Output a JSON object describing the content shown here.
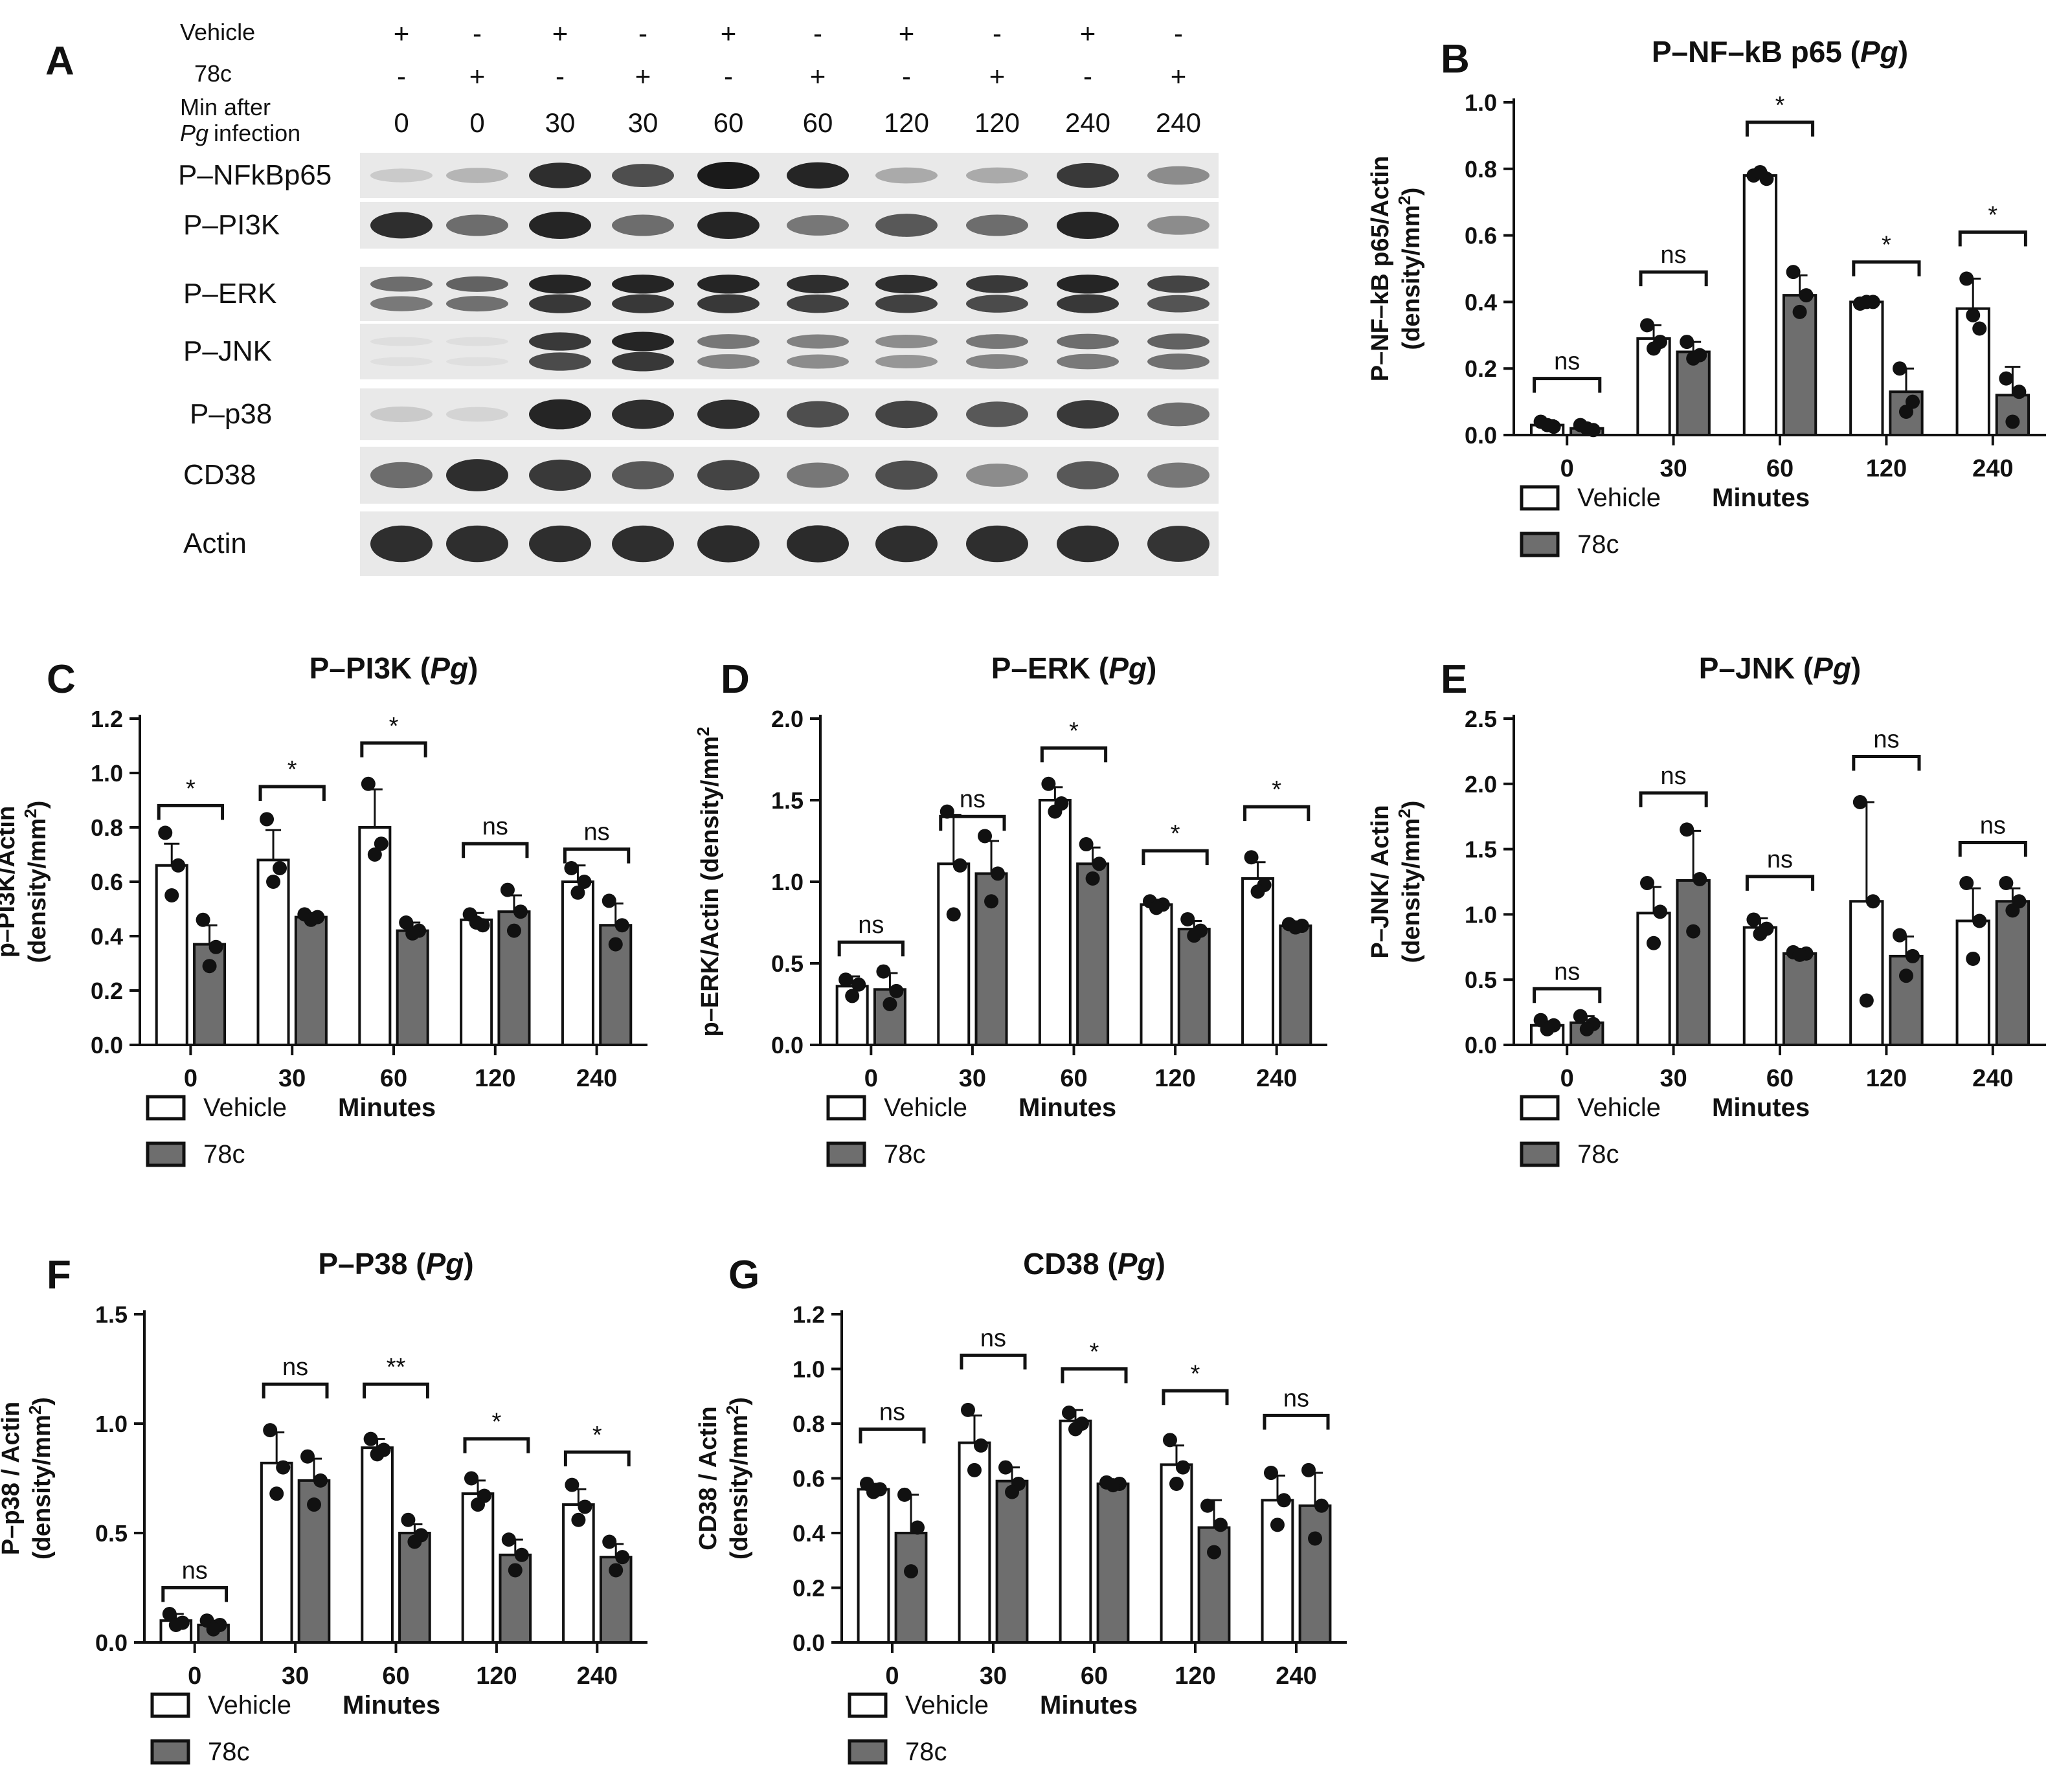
{
  "colors": {
    "vehicle": "#ffffff",
    "c78": "#6e6e6e",
    "axis": "#111111",
    "blot_bg": "#e9e9e9",
    "band": "#1a1a1a"
  },
  "blot": {
    "panel_letter": "A",
    "row_labels": [
      "Vehicle",
      "78c",
      "Min after",
      "infection"
    ],
    "pg": "Pg",
    "vehicle_signs": [
      "+",
      "-",
      "+",
      "-",
      "+",
      "-",
      "+",
      "-",
      "+",
      "-"
    ],
    "c78_signs": [
      "-",
      "+",
      "-",
      "+",
      "-",
      "+",
      "-",
      "+",
      "-",
      "+"
    ],
    "minutes": [
      "0",
      "0",
      "30",
      "30",
      "60",
      "60",
      "120",
      "120",
      "240",
      "240"
    ],
    "lanes": [
      {
        "name": "P–NFkBp65",
        "intensity": [
          0.15,
          0.25,
          0.9,
          0.75,
          1.0,
          0.95,
          0.3,
          0.3,
          0.85,
          0.45
        ],
        "double": false
      },
      {
        "name": "P–PI3K",
        "intensity": [
          0.9,
          0.6,
          0.95,
          0.6,
          0.95,
          0.55,
          0.7,
          0.6,
          0.95,
          0.45
        ],
        "double": false
      },
      {
        "name": "P–ERK",
        "intensity": [
          0.6,
          0.65,
          0.95,
          0.95,
          0.95,
          0.9,
          0.9,
          0.85,
          0.95,
          0.8
        ],
        "double": true
      },
      {
        "name": "P–JNK",
        "intensity": [
          0.05,
          0.05,
          0.85,
          0.95,
          0.55,
          0.5,
          0.45,
          0.55,
          0.6,
          0.65
        ],
        "double": true
      },
      {
        "name": "P–p38",
        "intensity": [
          0.15,
          0.1,
          0.95,
          0.9,
          0.9,
          0.75,
          0.8,
          0.7,
          0.85,
          0.6
        ],
        "double": false
      },
      {
        "name": "CD38",
        "intensity": [
          0.6,
          0.9,
          0.85,
          0.7,
          0.8,
          0.55,
          0.75,
          0.45,
          0.7,
          0.55
        ],
        "double": false
      },
      {
        "name": "Actin",
        "intensity": [
          0.9,
          0.9,
          0.9,
          0.9,
          0.92,
          0.92,
          0.9,
          0.9,
          0.9,
          0.88
        ],
        "double": false
      }
    ]
  },
  "chart_data": [
    {
      "type": "bar",
      "panel_letter": "B",
      "title": "P–NF–kB p65 (",
      "title_italic": "Pg",
      "title_end": ")",
      "ylabel_line1": "P–NF–kB p65/Actin",
      "ylabel_line2": "(density/mm",
      "ylabel_sup": "2",
      "ylabel_end": ")",
      "xlabel": "Minutes",
      "ylim": [
        0,
        1.0
      ],
      "yticks": [
        "0.0",
        "0.2",
        "0.4",
        "0.6",
        "0.8",
        "1.0"
      ],
      "categories": [
        "0",
        "30",
        "60",
        "120",
        "240"
      ],
      "legend": [
        "Vehicle",
        "78c"
      ],
      "series": [
        {
          "name": "Vehicle",
          "values": [
            0.03,
            0.29,
            0.78,
            0.4,
            0.38
          ],
          "sd": [
            0.015,
            0.04,
            0.01,
            0.005,
            0.09
          ],
          "points": [
            [
              0.04,
              0.025,
              0.03
            ],
            [
              0.33,
              0.28,
              0.26
            ],
            [
              0.78,
              0.77,
              0.79
            ],
            [
              0.395,
              0.4,
              0.4
            ],
            [
              0.47,
              0.32,
              0.36
            ]
          ]
        },
        {
          "name": "78c",
          "values": [
            0.02,
            0.25,
            0.42,
            0.13,
            0.12
          ],
          "sd": [
            0.01,
            0.03,
            0.06,
            0.07,
            0.085
          ],
          "points": [
            [
              0.03,
              0.015,
              0.02
            ],
            [
              0.28,
              0.24,
              0.23
            ],
            [
              0.49,
              0.42,
              0.37
            ],
            [
              0.2,
              0.1,
              0.07
            ],
            [
              0.17,
              0.13,
              0.04
            ]
          ]
        }
      ],
      "sig": [
        "ns",
        "ns",
        "*",
        "*",
        "*"
      ],
      "sig_y": [
        0.17,
        0.49,
        0.94,
        0.52,
        0.61
      ]
    },
    {
      "type": "bar",
      "panel_letter": "C",
      "title": "P–PI3K (",
      "title_italic": "Pg",
      "title_end": ")",
      "ylabel_line1": "p–PI3K/Actin",
      "ylabel_line2": "(density/mm",
      "ylabel_sup": "2",
      "ylabel_end": ")",
      "xlabel": "Minutes",
      "ylim": [
        0,
        1.2
      ],
      "yticks": [
        "0.0",
        "0.2",
        "0.4",
        "0.6",
        "0.8",
        "1.0",
        "1.2"
      ],
      "categories": [
        "0",
        "30",
        "60",
        "120",
        "240"
      ],
      "legend": [
        "Vehicle",
        "78c"
      ],
      "series": [
        {
          "name": "Vehicle",
          "values": [
            0.66,
            0.68,
            0.8,
            0.46,
            0.6
          ],
          "sd": [
            0.08,
            0.11,
            0.14,
            0.025,
            0.06
          ],
          "points": [
            [
              0.78,
              0.66,
              0.55
            ],
            [
              0.83,
              0.65,
              0.6
            ],
            [
              0.96,
              0.74,
              0.7
            ],
            [
              0.48,
              0.44,
              0.45
            ],
            [
              0.65,
              0.6,
              0.56
            ]
          ]
        },
        {
          "name": "78c",
          "values": [
            0.37,
            0.47,
            0.42,
            0.49,
            0.44
          ],
          "sd": [
            0.07,
            0.015,
            0.03,
            0.06,
            0.08
          ],
          "points": [
            [
              0.46,
              0.36,
              0.29
            ],
            [
              0.48,
              0.47,
              0.46
            ],
            [
              0.45,
              0.42,
              0.41
            ],
            [
              0.57,
              0.49,
              0.42
            ],
            [
              0.53,
              0.44,
              0.37
            ]
          ]
        }
      ],
      "sig": [
        "*",
        "*",
        "*",
        "ns",
        "ns"
      ],
      "sig_y": [
        0.88,
        0.95,
        1.11,
        0.74,
        0.72
      ]
    },
    {
      "type": "bar",
      "panel_letter": "D",
      "title": "P–ERK (",
      "title_italic": "Pg",
      "title_end": ")",
      "ylabel_line1": "p–ERK/Actin (density/mm",
      "ylabel_line2": "",
      "ylabel_sup": "2",
      "ylabel_end": "",
      "xlabel": "Minutes",
      "ylim": [
        0,
        2.0
      ],
      "yticks": [
        "0.0",
        "0.5",
        "1.0",
        "1.5",
        "2.0"
      ],
      "categories": [
        "0",
        "30",
        "60",
        "120",
        "240"
      ],
      "legend": [
        "Vehicle",
        "78c"
      ],
      "series": [
        {
          "name": "Vehicle",
          "values": [
            0.36,
            1.11,
            1.5,
            0.86,
            1.02
          ],
          "sd": [
            0.06,
            0.3,
            0.08,
            0.03,
            0.1
          ],
          "points": [
            [
              0.4,
              0.37,
              0.3
            ],
            [
              1.43,
              1.1,
              0.8
            ],
            [
              1.6,
              1.48,
              1.43
            ],
            [
              0.88,
              0.86,
              0.84
            ],
            [
              1.15,
              0.98,
              0.94
            ]
          ]
        },
        {
          "name": "78c",
          "values": [
            0.34,
            1.05,
            1.11,
            0.71,
            0.73
          ],
          "sd": [
            0.1,
            0.2,
            0.1,
            0.05,
            0.015
          ],
          "points": [
            [
              0.45,
              0.33,
              0.25
            ],
            [
              1.28,
              1.05,
              0.88
            ],
            [
              1.23,
              1.11,
              1.02
            ],
            [
              0.77,
              0.7,
              0.67
            ],
            [
              0.74,
              0.73,
              0.72
            ]
          ]
        }
      ],
      "sig": [
        "ns",
        "ns",
        "*",
        "*",
        "*"
      ],
      "sig_y": [
        0.63,
        1.4,
        1.82,
        1.19,
        1.46
      ]
    },
    {
      "type": "bar",
      "panel_letter": "E",
      "title": "P–JNK (",
      "title_italic": "Pg",
      "title_end": ")",
      "ylabel_line1": "P–JNK/ Actin",
      "ylabel_line2": "(density/mm",
      "ylabel_sup": "2",
      "ylabel_end": ")",
      "xlabel": "Minutes",
      "ylim": [
        0,
        2.5
      ],
      "yticks": [
        "0.0",
        "0.5",
        "1.0",
        "1.5",
        "2.0",
        "2.5"
      ],
      "categories": [
        "0",
        "30",
        "60",
        "120",
        "240"
      ],
      "legend": [
        "Vehicle",
        "78c"
      ],
      "series": [
        {
          "name": "Vehicle",
          "values": [
            0.15,
            1.01,
            0.9,
            1.1,
            0.95
          ],
          "sd": [
            0.03,
            0.2,
            0.07,
            0.76,
            0.25
          ],
          "points": [
            [
              0.19,
              0.15,
              0.12
            ],
            [
              1.24,
              1.02,
              0.78
            ],
            [
              0.96,
              0.89,
              0.85
            ],
            [
              1.86,
              1.1,
              0.34
            ],
            [
              1.24,
              0.95,
              0.66
            ]
          ]
        },
        {
          "name": "78c",
          "values": [
            0.17,
            1.26,
            0.7,
            0.68,
            1.1
          ],
          "sd": [
            0.05,
            0.38,
            0.01,
            0.15,
            0.1
          ],
          "points": [
            [
              0.22,
              0.16,
              0.12
            ],
            [
              1.65,
              1.27,
              0.87
            ],
            [
              0.71,
              0.7,
              0.69
            ],
            [
              0.84,
              0.68,
              0.53
            ],
            [
              1.24,
              1.1,
              1.03
            ]
          ]
        }
      ],
      "sig": [
        "ns",
        "ns",
        "ns",
        "ns",
        "ns"
      ],
      "sig_y": [
        0.43,
        1.93,
        1.29,
        2.21,
        1.55
      ]
    },
    {
      "type": "bar",
      "panel_letter": "F",
      "title": "P–P38 (",
      "title_italic": "Pg",
      "title_end": ")",
      "ylabel_line1": "P–p38 / Actin",
      "ylabel_line2": "(density/mm",
      "ylabel_sup": "2",
      "ylabel_end": ")",
      "xlabel": "Minutes",
      "ylim": [
        0,
        1.5
      ],
      "yticks": [
        "0.0",
        "0.5",
        "1.0",
        "1.5"
      ],
      "categories": [
        "0",
        "30",
        "60",
        "120",
        "240"
      ],
      "legend": [
        "Vehicle",
        "78c"
      ],
      "series": [
        {
          "name": "Vehicle",
          "values": [
            0.1,
            0.82,
            0.89,
            0.68,
            0.63
          ],
          "sd": [
            0.03,
            0.14,
            0.04,
            0.06,
            0.07
          ],
          "points": [
            [
              0.13,
              0.09,
              0.08
            ],
            [
              0.97,
              0.8,
              0.68
            ],
            [
              0.93,
              0.88,
              0.86
            ],
            [
              0.75,
              0.67,
              0.63
            ],
            [
              0.72,
              0.62,
              0.56
            ]
          ]
        },
        {
          "name": "78c",
          "values": [
            0.08,
            0.74,
            0.5,
            0.4,
            0.39
          ],
          "sd": [
            0.02,
            0.1,
            0.04,
            0.07,
            0.06
          ],
          "points": [
            [
              0.1,
              0.08,
              0.06
            ],
            [
              0.85,
              0.74,
              0.63
            ],
            [
              0.56,
              0.49,
              0.46
            ],
            [
              0.47,
              0.4,
              0.33
            ],
            [
              0.46,
              0.39,
              0.33
            ]
          ]
        }
      ],
      "sig": [
        "ns",
        "ns",
        "**",
        "*",
        "*"
      ],
      "sig_y": [
        0.25,
        1.18,
        1.18,
        0.93,
        0.87
      ]
    },
    {
      "type": "bar",
      "panel_letter": "G",
      "title": "CD38 (",
      "title_italic": "Pg",
      "title_end": ")",
      "ylabel_line1": "CD38 / Actin",
      "ylabel_line2": "(density/mm",
      "ylabel_sup": "2",
      "ylabel_end": ")",
      "xlabel": "Minutes",
      "ylim": [
        0,
        1.2
      ],
      "yticks": [
        "0.0",
        "0.2",
        "0.4",
        "0.6",
        "0.8",
        "1.0",
        "1.2"
      ],
      "categories": [
        "0",
        "30",
        "60",
        "120",
        "240"
      ],
      "legend": [
        "Vehicle",
        "78c"
      ],
      "series": [
        {
          "name": "Vehicle",
          "values": [
            0.56,
            0.73,
            0.81,
            0.65,
            0.52
          ],
          "sd": [
            0.02,
            0.1,
            0.04,
            0.07,
            0.09
          ],
          "points": [
            [
              0.58,
              0.56,
              0.55
            ],
            [
              0.85,
              0.72,
              0.63
            ],
            [
              0.84,
              0.8,
              0.78
            ],
            [
              0.74,
              0.64,
              0.58
            ],
            [
              0.62,
              0.52,
              0.43
            ]
          ]
        },
        {
          "name": "78c",
          "values": [
            0.4,
            0.59,
            0.58,
            0.42,
            0.5
          ],
          "sd": [
            0.14,
            0.05,
            0.005,
            0.1,
            0.12
          ],
          "points": [
            [
              0.54,
              0.42,
              0.26
            ],
            [
              0.64,
              0.58,
              0.55
            ],
            [
              0.585,
              0.58,
              0.575
            ],
            [
              0.5,
              0.43,
              0.33
            ],
            [
              0.63,
              0.5,
              0.38
            ]
          ]
        }
      ],
      "sig": [
        "ns",
        "ns",
        "*",
        "*",
        "ns"
      ],
      "sig_y": [
        0.78,
        1.05,
        1.0,
        0.92,
        0.83
      ]
    }
  ]
}
